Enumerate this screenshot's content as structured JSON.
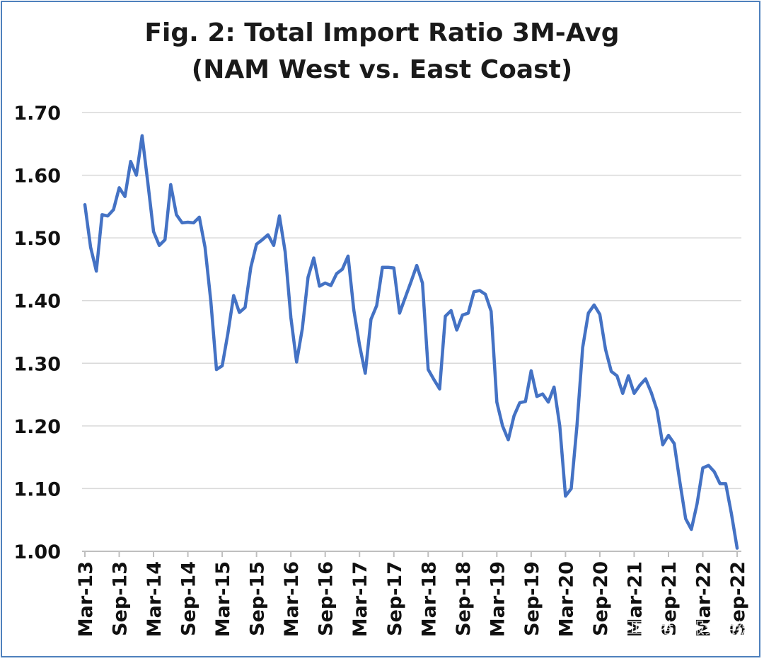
{
  "chart_data": {
    "type": "line",
    "title": "Fig. 2: Total Import Ratio 3M-Avg",
    "subtitle": "(NAM West vs. East Coast)",
    "xlabel": "",
    "ylabel": "",
    "ylim": [
      1.0,
      1.7
    ],
    "yticks": [
      "1.70",
      "1.60",
      "1.50",
      "1.40",
      "1.30",
      "1.20",
      "1.10",
      "1.00"
    ],
    "ytick_values": [
      1.7,
      1.6,
      1.5,
      1.4,
      1.3,
      1.2,
      1.1,
      1.0
    ],
    "x_tick_labels": [
      "Mar-13",
      "Sep-13",
      "Mar-14",
      "Sep-14",
      "Mar-15",
      "Sep-15",
      "Mar-16",
      "Sep-16",
      "Mar-17",
      "Sep-17",
      "Mar-18",
      "Sep-18",
      "Mar-19",
      "Sep-19",
      "Mar-20",
      "Sep-20",
      "Mar-21",
      "Sep-21",
      "Mar-22",
      "Sep-22"
    ],
    "grid": true,
    "legend": "none",
    "line_color": "#4472c4",
    "series": [
      {
        "name": "Total Import Ratio 3M-Avg (NAM West vs. East Coast)",
        "start": "Mar-13",
        "frequency": "monthly",
        "values": [
          1.553,
          1.485,
          1.447,
          1.537,
          1.535,
          1.545,
          1.58,
          1.566,
          1.622,
          1.6,
          1.663,
          1.588,
          1.51,
          1.488,
          1.497,
          1.585,
          1.537,
          1.524,
          1.525,
          1.524,
          1.533,
          1.485,
          1.4,
          1.29,
          1.296,
          1.348,
          1.408,
          1.381,
          1.389,
          1.453,
          1.49,
          1.497,
          1.505,
          1.488,
          1.535,
          1.478,
          1.373,
          1.302,
          1.355,
          1.437,
          1.468,
          1.423,
          1.428,
          1.424,
          1.443,
          1.45,
          1.471,
          1.385,
          1.329,
          1.284,
          1.37,
          1.392,
          1.453,
          1.453,
          1.452,
          1.38,
          1.405,
          1.43,
          1.456,
          1.428,
          1.29,
          1.274,
          1.259,
          1.375,
          1.384,
          1.353,
          1.377,
          1.38,
          1.414,
          1.416,
          1.41,
          1.383,
          1.238,
          1.2,
          1.178,
          1.216,
          1.237,
          1.239,
          1.288,
          1.247,
          1.251,
          1.238,
          1.262,
          1.2,
          1.088,
          1.1,
          1.2,
          1.325,
          1.38,
          1.393,
          1.378,
          1.322,
          1.287,
          1.28,
          1.252,
          1.28,
          1.252,
          1.265,
          1.275,
          1.253,
          1.225,
          1.17,
          1.185,
          1.172,
          1.11,
          1.052,
          1.035,
          1.076,
          1.133,
          1.137,
          1.127,
          1.108,
          1.108,
          1.06,
          1.005
        ]
      }
    ]
  },
  "watermark": "亚太港口服务组织"
}
